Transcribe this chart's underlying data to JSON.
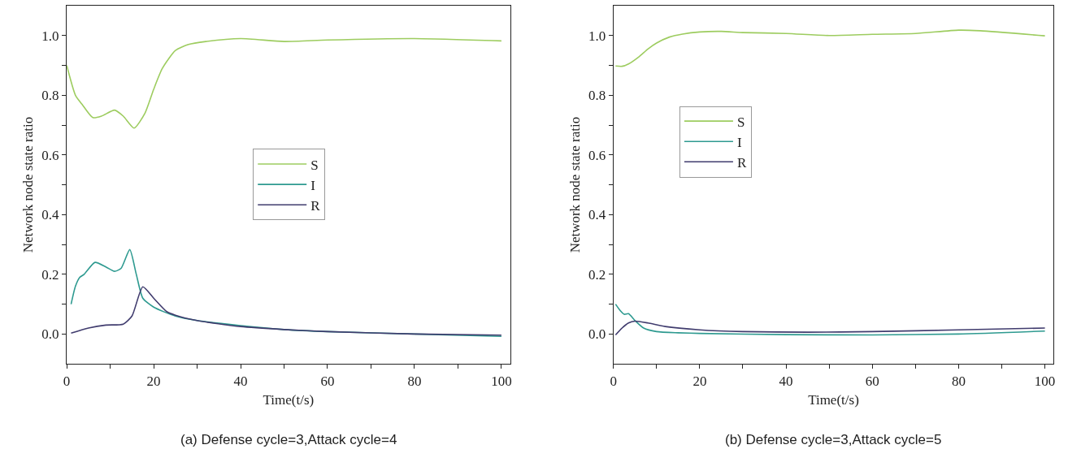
{
  "chart_data": [
    {
      "type": "line",
      "xlabel": "Time(t/s)",
      "ylabel": "Network node state ratio",
      "annotations": [
        "(a) Defense cycle=3,Attack cycle=4"
      ],
      "xlim": [
        0,
        102
      ],
      "ylim": [
        -0.1,
        1.1
      ],
      "xticks": [
        0,
        {
          "value": 10,
          "label": null
        },
        20,
        {
          "value": 30,
          "label": null
        },
        40,
        {
          "value": 50,
          "label": null
        },
        60,
        {
          "value": 70,
          "label": null
        },
        80,
        {
          "value": 90,
          "label": null
        },
        100
      ],
      "yticks": [
        {
          "value": 0,
          "label": "0.0"
        },
        {
          "value": 0.1,
          "label": null
        },
        0.2,
        {
          "value": 0.3,
          "label": null
        },
        0.4,
        {
          "value": 0.5,
          "label": null
        },
        0.6,
        {
          "value": 0.7,
          "label": null
        },
        0.8,
        {
          "value": 0.9,
          "label": null
        },
        {
          "value": 1,
          "label": "1.0"
        }
      ],
      "legend": "center",
      "series": [
        {
          "name": "S",
          "color": "#9dcc5f",
          "x": [
            0,
            2,
            3.5,
            6,
            8,
            11,
            13,
            15.5,
            18,
            20,
            22,
            25,
            28,
            32,
            40,
            50,
            60,
            80,
            100
          ],
          "values": [
            0.9,
            0.8,
            0.77,
            0.725,
            0.73,
            0.75,
            0.73,
            0.69,
            0.74,
            0.82,
            0.89,
            0.95,
            0.97,
            0.98,
            0.99,
            0.98,
            0.985,
            0.99,
            0.982
          ]
        },
        {
          "name": "I",
          "color": "#2e9a90",
          "x": [
            1,
            2,
            3,
            4,
            6.5,
            9,
            11,
            12.5,
            14.5,
            16,
            17.5,
            20,
            25,
            30,
            40,
            50,
            60,
            80,
            100
          ],
          "values": [
            0.1,
            0.16,
            0.19,
            0.2,
            0.24,
            0.225,
            0.21,
            0.22,
            0.283,
            0.2,
            0.12,
            0.09,
            0.06,
            0.045,
            0.028,
            0.015,
            0.008,
            0.0,
            -0.008
          ]
        },
        {
          "name": "R",
          "color": "#403c6e",
          "x": [
            1,
            5,
            9,
            13,
            15,
            17.5,
            20,
            23,
            25,
            30,
            40,
            50,
            60,
            80,
            100
          ],
          "values": [
            0.003,
            0.02,
            0.03,
            0.033,
            0.06,
            0.158,
            0.12,
            0.075,
            0.063,
            0.045,
            0.025,
            0.015,
            0.008,
            0.0,
            -0.004
          ]
        }
      ]
    },
    {
      "type": "line",
      "xlabel": "Time(t/s)",
      "ylabel": "Network node state ratio",
      "annotations": [
        "(b) Defense cycle=3,Attack cycle=5"
      ],
      "xlim": [
        0,
        102
      ],
      "ylim": [
        -0.1,
        1.1
      ],
      "xticks": [
        0,
        {
          "value": 10,
          "label": null
        },
        20,
        {
          "value": 30,
          "label": null
        },
        40,
        {
          "value": 50,
          "label": null
        },
        60,
        {
          "value": 70,
          "label": null
        },
        80,
        {
          "value": 90,
          "label": null
        },
        100
      ],
      "yticks": [
        {
          "value": 0,
          "label": "0.0"
        },
        {
          "value": 0.1,
          "label": null
        },
        0.2,
        {
          "value": 0.3,
          "label": null
        },
        0.4,
        {
          "value": 0.5,
          "label": null
        },
        0.6,
        {
          "value": 0.7,
          "label": null
        },
        0.8,
        {
          "value": 0.9,
          "label": null
        },
        {
          "value": 1,
          "label": "1.0"
        }
      ],
      "legend": "top left",
      "series": [
        {
          "name": "S",
          "color": "#9dcc5f",
          "x": [
            0.5,
            2,
            3.5,
            6,
            8,
            10,
            13,
            16,
            20,
            25,
            30,
            40,
            50,
            60,
            70,
            80,
            85,
            100
          ],
          "values": [
            0.898,
            0.897,
            0.905,
            0.93,
            0.955,
            0.975,
            0.995,
            1.005,
            1.012,
            1.014,
            1.01,
            1.007,
            1.0,
            1.004,
            1.007,
            1.018,
            1.016,
            0.999
          ]
        },
        {
          "name": "I",
          "color": "#2e9a90",
          "x": [
            0.5,
            1.5,
            2.5,
            3.5,
            5,
            7,
            10,
            15,
            20,
            40,
            60,
            80,
            100
          ],
          "values": [
            0.1,
            0.08,
            0.066,
            0.068,
            0.045,
            0.02,
            0.008,
            0.004,
            0.002,
            -0.002,
            -0.003,
            0.0,
            0.01
          ]
        },
        {
          "name": "R",
          "color": "#403c6e",
          "x": [
            0.5,
            2,
            3.5,
            5,
            8,
            12,
            20,
            30,
            45,
            60,
            80,
            100
          ],
          "values": [
            -0.003,
            0.02,
            0.037,
            0.043,
            0.037,
            0.025,
            0.014,
            0.008,
            0.006,
            0.008,
            0.014,
            0.02
          ]
        }
      ]
    }
  ]
}
